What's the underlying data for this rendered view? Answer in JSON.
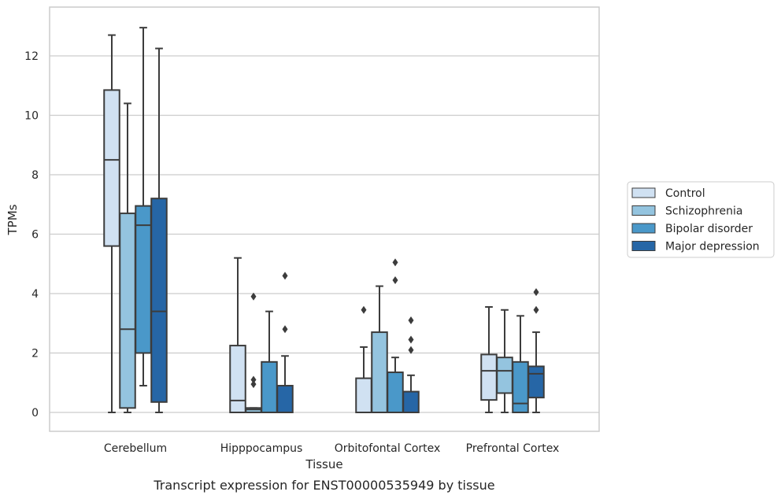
{
  "chart_data": {
    "type": "boxplot",
    "title": "Transcript expression for ENST00000535949 by tissue",
    "xlabel": "Tissue",
    "ylabel": "TPMs",
    "ylim": [
      -0.6,
      13.6
    ],
    "yticks": [
      0,
      2,
      4,
      6,
      8,
      10,
      12
    ],
    "grid": true,
    "legend_position": "right",
    "categories": [
      "Cerebellum",
      "Hipppocampus",
      "Orbitofontal Cortex",
      "Prefrontal Cortex"
    ],
    "series": [
      {
        "name": "Control",
        "color": "#d0e1f2",
        "boxes": [
          {
            "whislo": 0.0,
            "q1": 5.6,
            "med": 8.5,
            "q3": 10.85,
            "whishi": 12.7,
            "fliers": []
          },
          {
            "whislo": 0.0,
            "q1": 0.0,
            "med": 0.4,
            "q3": 2.25,
            "whishi": 5.2,
            "fliers": []
          },
          {
            "whislo": 0.0,
            "q1": 0.0,
            "med": 0.0,
            "q3": 1.15,
            "whishi": 2.2,
            "fliers": [
              3.45
            ]
          },
          {
            "whislo": 0.0,
            "q1": 0.42,
            "med": 1.4,
            "q3": 1.95,
            "whishi": 3.55,
            "fliers": []
          }
        ]
      },
      {
        "name": "Schizophrenia",
        "color": "#94c4df",
        "boxes": [
          {
            "whislo": 0.0,
            "q1": 0.15,
            "med": 2.8,
            "q3": 6.7,
            "whishi": 10.4,
            "fliers": []
          },
          {
            "whislo": 0.0,
            "q1": 0.0,
            "med": 0.1,
            "q3": 0.15,
            "whishi": 0.15,
            "fliers": [
              0.95,
              1.1,
              3.9
            ]
          },
          {
            "whislo": 0.0,
            "q1": 0.0,
            "med": 0.0,
            "q3": 2.7,
            "whishi": 4.25,
            "fliers": []
          },
          {
            "whislo": 0.0,
            "q1": 0.65,
            "med": 1.4,
            "q3": 1.85,
            "whishi": 3.45,
            "fliers": []
          }
        ]
      },
      {
        "name": "Bipolar disorder",
        "color": "#4a98c9",
        "boxes": [
          {
            "whislo": 0.9,
            "q1": 2.0,
            "med": 6.3,
            "q3": 6.95,
            "whishi": 12.95,
            "fliers": []
          },
          {
            "whislo": 0.0,
            "q1": 0.0,
            "med": 0.0,
            "q3": 1.7,
            "whishi": 3.4,
            "fliers": []
          },
          {
            "whislo": 0.0,
            "q1": 0.0,
            "med": 0.0,
            "q3": 1.35,
            "whishi": 1.85,
            "fliers": [
              4.45,
              5.05
            ]
          },
          {
            "whislo": 0.0,
            "q1": 0.0,
            "med": 0.3,
            "q3": 1.7,
            "whishi": 3.25,
            "fliers": []
          }
        ]
      },
      {
        "name": "Major depression",
        "color": "#2666a6",
        "boxes": [
          {
            "whislo": 0.0,
            "q1": 0.35,
            "med": 3.4,
            "q3": 7.2,
            "whishi": 12.25,
            "fliers": []
          },
          {
            "whislo": 0.0,
            "q1": 0.0,
            "med": 0.0,
            "q3": 0.9,
            "whishi": 1.9,
            "fliers": [
              2.8,
              4.6
            ]
          },
          {
            "whislo": 0.0,
            "q1": 0.0,
            "med": 0.0,
            "q3": 0.7,
            "whishi": 1.25,
            "fliers": [
              2.1,
              2.45,
              3.1
            ]
          },
          {
            "whislo": 0.0,
            "q1": 0.5,
            "med": 1.3,
            "q3": 1.55,
            "whishi": 2.7,
            "fliers": [
              3.45,
              4.05
            ]
          }
        ]
      }
    ]
  }
}
